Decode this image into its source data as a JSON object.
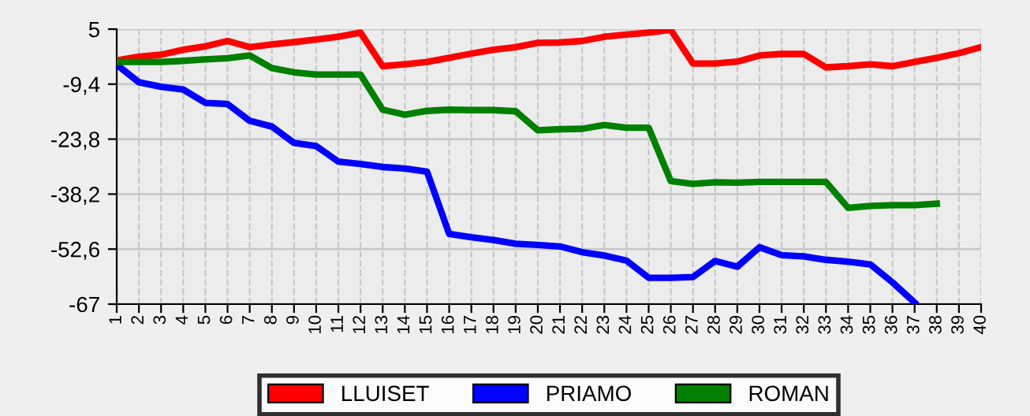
{
  "chart_data": {
    "type": "line",
    "categories": [
      "1",
      "2",
      "3",
      "4",
      "5",
      "6",
      "7",
      "8",
      "9",
      "10",
      "11",
      "12",
      "13",
      "14",
      "15",
      "16",
      "17",
      "18",
      "19",
      "20",
      "21",
      "22",
      "23",
      "24",
      "25",
      "26",
      "27",
      "28",
      "29",
      "30",
      "31",
      "32",
      "33",
      "34",
      "35",
      "36",
      "37",
      "38",
      "39",
      "40"
    ],
    "series": [
      {
        "name": "LLUISET",
        "color": "#ff0000",
        "values": [
          -3.2,
          -2.2,
          -1.7,
          -0.4,
          0.5,
          1.9,
          0.3,
          1.0,
          1.6,
          2.3,
          3.0,
          4.1,
          -4.7,
          -4.2,
          -3.6,
          -2.5,
          -1.4,
          -0.4,
          0.3,
          1.4,
          1.5,
          1.9,
          3.0,
          3.6,
          4.1,
          4.8,
          -4.0,
          -4.0,
          -3.5,
          -1.9,
          -1.5,
          -1.5,
          -5.0,
          -4.7,
          -4.2,
          -4.7,
          -3.6,
          -2.5,
          -1.3,
          0.3
        ]
      },
      {
        "name": "PRIAMO",
        "color": "#0000ff",
        "values": [
          -4.3,
          -8.9,
          -10.1,
          -10.8,
          -14.3,
          -14.6,
          -19.0,
          -20.5,
          -24.8,
          -25.6,
          -29.7,
          -30.3,
          -31.1,
          -31.5,
          -32.3,
          -48.6,
          -49.5,
          -50.2,
          -51.2,
          -51.5,
          -51.9,
          -53.4,
          -54.3,
          -55.6,
          -60.1,
          -60.1,
          -59.9,
          -55.7,
          -57.2,
          -52.1,
          -54.2,
          -54.5,
          -55.4,
          -55.9,
          -56.6,
          -61.3,
          -66.6,
          null,
          null,
          null
        ]
      },
      {
        "name": "ROMAN",
        "color": "#008000",
        "values": [
          -3.6,
          -3.6,
          -3.6,
          -3.3,
          -2.9,
          -2.6,
          -1.9,
          -5.2,
          -6.3,
          -6.9,
          -6.9,
          -6.9,
          -16.1,
          -17.4,
          -16.4,
          -16.1,
          -16.2,
          -16.2,
          -16.5,
          -21.5,
          -21.2,
          -21.1,
          -20.1,
          -20.8,
          -20.8,
          -34.8,
          -35.5,
          -35.1,
          -35.2,
          -35.0,
          -35.0,
          -35.0,
          -35.0,
          -41.8,
          -41.3,
          -41.1,
          -41.1,
          -40.7,
          null,
          null
        ]
      }
    ],
    "ylim": [
      -67,
      5
    ],
    "yticks": [
      {
        "value": 5,
        "label": "5"
      },
      {
        "value": -9.4,
        "label": "-9,4"
      },
      {
        "value": -23.8,
        "label": "-23,8"
      },
      {
        "value": -38.2,
        "label": "-38,2"
      },
      {
        "value": -52.6,
        "label": "-52,6"
      },
      {
        "value": -67,
        "label": "-67"
      }
    ],
    "grid": true,
    "legend": "bottom",
    "marker": "none",
    "line_style": "solid"
  }
}
